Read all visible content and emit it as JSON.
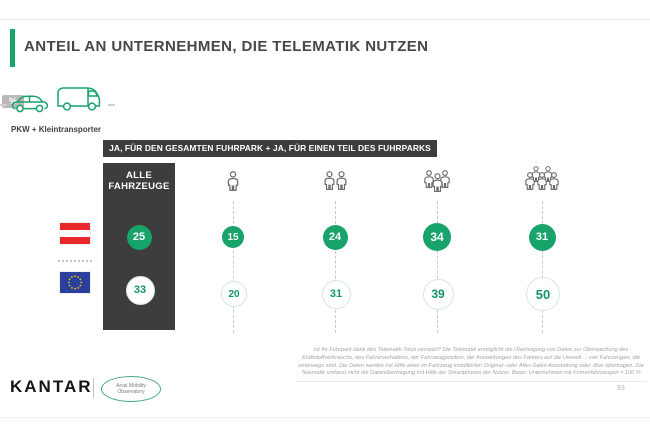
{
  "slide": {
    "title": "ANTEIL AN UNTERNEHMEN, DIE TELEMATIK NUTZEN",
    "page_number": "93"
  },
  "legend": {
    "unit_badge": "%",
    "vehicle_label": "PKW + Kleintransporter",
    "vehicle_icons": [
      "car-icon",
      "van-icon"
    ]
  },
  "banner": "JA, FÜR DEN GESAMTEN FUHRPARK + JA, FÜR EINEN TEIL DES FUHRPARKS",
  "chart_data": {
    "type": "table",
    "title": "Anteil an Unternehmen, die Telematik nutzen",
    "unit": "%",
    "rows": [
      {
        "id": "austria",
        "flag_icon": "austria-flag",
        "marker": "solid-green-circle-white-text"
      },
      {
        "id": "eu",
        "flag_icon": "eu-flag",
        "marker": "white-circle-green-text"
      }
    ],
    "all_vehicles": {
      "label": "ALLE FAHRZEUGE",
      "austria": 25,
      "eu": 33
    },
    "company_size_columns": [
      {
        "icon": "person-group-1-icon",
        "persons": 1,
        "austria": 15,
        "eu": 20
      },
      {
        "icon": "person-group-2-icon",
        "persons": 2,
        "austria": 24,
        "eu": 31
      },
      {
        "icon": "person-group-3-icon",
        "persons": 3,
        "austria": 34,
        "eu": 39
      },
      {
        "icon": "person-group-5-icon",
        "persons": 5,
        "austria": 31,
        "eu": 50
      }
    ],
    "colors": {
      "accent_green": "#17a36a",
      "dark_panel": "#3d3d3d",
      "austria_red": "#e8282b",
      "eu_blue": "#2a3e9c"
    },
    "legend_position": "left-flags",
    "grid": "dashed-vertical-guides"
  },
  "footnote": "Ist Ihr Fuhrpark dank des Telematik-Tools vernetzt? Die Telematik ermöglicht die Übertragung von Daten zur Überwachung des Kraftstoffverbrauchs, des Fahrerverhaltens, der Fahrzeugposition, der Auswirkungen des Fahrers auf die Umwelt ... von Fahrzeugen, die unterwegs sind. Die Daten werden mit Hilfe einer im Fahrzeug installierten Original- oder After-Sales-Ausstattung oder -Box übertragen. Die Telematik umfasst nicht die Datenübertragung mit Hilfe der Smartphones der Nutzer. Basis: Unternehmen mit Firmenfahrzeugen = 100 %",
  "footer": {
    "kantar_logo": "KANTAR",
    "partner_logo_line1": "Arval Mobility",
    "partner_logo_line2": "Observatory"
  }
}
